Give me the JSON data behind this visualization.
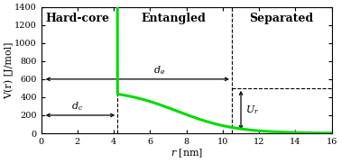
{
  "xlabel": "$r$ [nm]",
  "ylabel": "V(r) [J/mol]",
  "xlim": [
    0,
    16
  ],
  "ylim": [
    0,
    1400
  ],
  "yticks": [
    0,
    200,
    400,
    600,
    800,
    1000,
    1200,
    1400
  ],
  "xticks": [
    0,
    2,
    4,
    6,
    8,
    10,
    12,
    14,
    16
  ],
  "curve_color": "#00dd00",
  "curve_linewidth": 2.2,
  "dc_x": 4.2,
  "de_x": 10.5,
  "dc_y": 200,
  "de_y": 600,
  "Ur_y_top": 500,
  "Ur_y_bot": 10,
  "Ur_x": 11.0,
  "section1_label": "Hard-core",
  "section2_label": "Entangled",
  "section3_label": "Separated",
  "dc_label": "$d_c$",
  "de_label": "$d_e$",
  "Ur_label": "$U_r$",
  "section_dashes": [
    4.2,
    10.5
  ],
  "arrow_color": "black",
  "bg_color": "white",
  "label_fontsize": 8,
  "section_fontsize": 9,
  "axis_fontsize": 8,
  "tick_fontsize": 7
}
